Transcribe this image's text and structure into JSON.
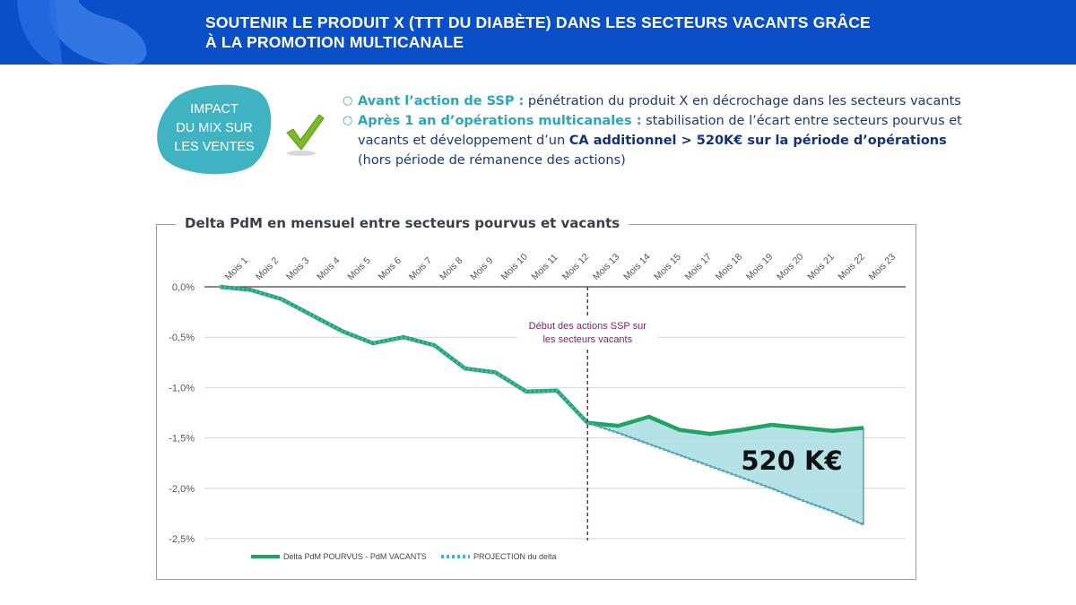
{
  "header": {
    "title_line1": "SOUTENIR LE PRODUIT X (TTT DU DIABÈTE) DANS LES SECTEURS VACANTS GRÂCE",
    "title_line2": "À LA PROMOTION MULTICANALE"
  },
  "impact": {
    "line1": "IMPACT",
    "line2": "DU MIX SUR",
    "line3": "LES VENTES"
  },
  "bullets": {
    "b1_label": "Avant l’action de SSP :",
    "b1_text": " pénétration du produit X en décrochage dans les secteurs vacants",
    "b2_label": "Après 1 an d’opérations multicanales :",
    "b2_text1": " stabilisation de l’écart entre secteurs pourvus et vacants et développement d’un ",
    "b2_bold": "CA additionnel > 520K€ sur la période d’opérations",
    "b2_text2": " (hors période de rémanence des actions)"
  },
  "colors": {
    "header_bg": "#0b4fc8",
    "teal": "#2ca7b6",
    "series_green": "#1fa463",
    "projection_teal": "#4bb3c2",
    "annotation_purple": "#7b1f6e",
    "area_fill": "#a8dde3"
  },
  "chart_data": {
    "type": "line",
    "title": "Delta PdM en mensuel entre secteurs pourvus et vacants",
    "categories": [
      "Mois 1",
      "Mois 2",
      "Mois 3",
      "Mois 4",
      "Mois 5",
      "Mois 6",
      "Mois 7",
      "Mois 8",
      "Mois 9",
      "Mois 10",
      "Mois 11",
      "Mois 12",
      "Mois 13",
      "Mois 14",
      "Mois 15",
      "Mois 17",
      "Mois 18",
      "Mois 19",
      "Mois 20",
      "Mois 21",
      "Mois 22",
      "Mois 23"
    ],
    "y_ticks": [
      "0,0%",
      "-0,5%",
      "-1,0%",
      "-1,5%",
      "-2,0%",
      "-2,5%"
    ],
    "ylim": [
      -2.5,
      0.0
    ],
    "grid": true,
    "series": [
      {
        "name": "Delta PdM POURVUS - PdM VACANTS",
        "values": [
          0.0,
          -0.03,
          -0.12,
          -0.28,
          -0.44,
          -0.56,
          -0.5,
          -0.58,
          -0.81,
          -0.85,
          -1.04,
          -1.03,
          -1.35,
          -1.38,
          -1.29,
          -1.42,
          -1.46,
          -1.42,
          -1.37,
          -1.4,
          -1.43,
          -1.4
        ]
      },
      {
        "name": "PROJECTION du delta",
        "values": [
          0.0,
          -0.03,
          -0.12,
          -0.28,
          -0.44,
          -0.56,
          -0.5,
          -0.58,
          -0.81,
          -0.85,
          -1.04,
          -1.03,
          -1.35,
          -1.45,
          -1.56,
          -1.67,
          -1.78,
          -1.89,
          -2.0,
          -2.12,
          -2.23,
          -2.36
        ]
      }
    ],
    "annotation": {
      "line1": "Début des actions SSP sur",
      "line2": "les secteurs vacants",
      "at_category": "Mois 13"
    },
    "area_label": "520 K€",
    "legend_position": "bottom-left"
  }
}
